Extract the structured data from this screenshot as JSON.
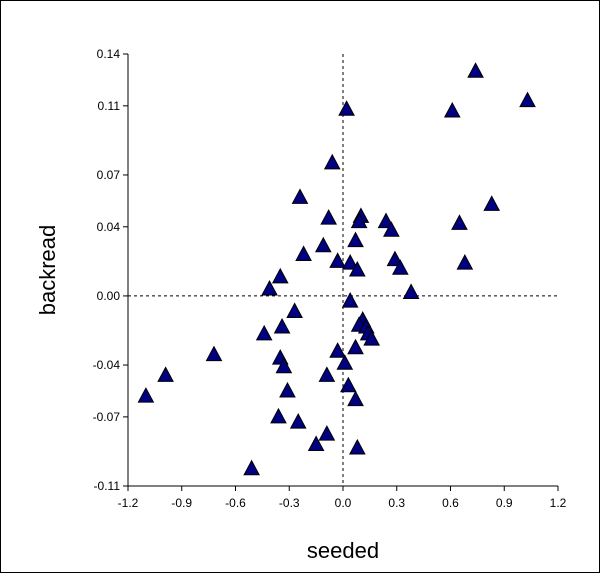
{
  "chart_data": {
    "type": "scatter",
    "title": "",
    "xlabel": "seeded",
    "ylabel": "backread",
    "xlim": [
      -1.2,
      1.2
    ],
    "ylim": [
      -0.11,
      0.14
    ],
    "x_ticks": [
      -1.2,
      -0.9,
      -0.6,
      -0.3,
      0.0,
      0.3,
      0.6,
      0.9,
      1.2
    ],
    "x_tick_labels": [
      "-1.2",
      "-0.9",
      "-0.6",
      "-0.3",
      "0.0",
      "0.3",
      "0.6",
      "0.9",
      "1.2"
    ],
    "y_ticks": [
      0.14,
      0.11,
      0.07,
      0.04,
      0.0,
      -0.04,
      -0.07,
      -0.11
    ],
    "y_tick_labels": [
      "0.14",
      "0.11",
      "0.07",
      "0.04",
      "0.00",
      "-0.04",
      "-0.07",
      "-0.11"
    ],
    "reference_lines": {
      "x": 0,
      "y": 0,
      "style": "dashed"
    },
    "marker": {
      "shape": "triangle",
      "fill": "#000080",
      "stroke": "#000000"
    },
    "grid": false,
    "legend": "none",
    "points": [
      {
        "x": 0.74,
        "y": 0.13
      },
      {
        "x": 1.03,
        "y": 0.113
      },
      {
        "x": 0.61,
        "y": 0.107
      },
      {
        "x": 0.02,
        "y": 0.108
      },
      {
        "x": -0.06,
        "y": 0.077
      },
      {
        "x": -0.24,
        "y": 0.057
      },
      {
        "x": 0.83,
        "y": 0.053
      },
      {
        "x": -0.08,
        "y": 0.045
      },
      {
        "x": 0.1,
        "y": 0.046
      },
      {
        "x": 0.09,
        "y": 0.043
      },
      {
        "x": 0.24,
        "y": 0.043
      },
      {
        "x": 0.27,
        "y": 0.038
      },
      {
        "x": 0.65,
        "y": 0.042
      },
      {
        "x": 0.07,
        "y": 0.032
      },
      {
        "x": -0.11,
        "y": 0.029
      },
      {
        "x": -0.22,
        "y": 0.024
      },
      {
        "x": -0.03,
        "y": 0.02
      },
      {
        "x": 0.04,
        "y": 0.019
      },
      {
        "x": 0.29,
        "y": 0.021
      },
      {
        "x": 0.68,
        "y": 0.019
      },
      {
        "x": 0.08,
        "y": 0.015
      },
      {
        "x": 0.32,
        "y": 0.016
      },
      {
        "x": -0.35,
        "y": 0.011
      },
      {
        "x": -0.41,
        "y": 0.004
      },
      {
        "x": 0.38,
        "y": 0.002
      },
      {
        "x": 0.04,
        "y": -0.003
      },
      {
        "x": -0.27,
        "y": -0.009
      },
      {
        "x": 0.11,
        "y": -0.014
      },
      {
        "x": 0.09,
        "y": -0.017
      },
      {
        "x": -0.34,
        "y": -0.018
      },
      {
        "x": 0.13,
        "y": -0.018
      },
      {
        "x": 0.14,
        "y": -0.022
      },
      {
        "x": -0.44,
        "y": -0.022
      },
      {
        "x": 0.16,
        "y": -0.025
      },
      {
        "x": 0.07,
        "y": -0.03
      },
      {
        "x": -0.03,
        "y": -0.032
      },
      {
        "x": -0.72,
        "y": -0.034
      },
      {
        "x": -0.35,
        "y": -0.036
      },
      {
        "x": 0.01,
        "y": -0.039
      },
      {
        "x": -0.33,
        "y": -0.041
      },
      {
        "x": -0.09,
        "y": -0.046
      },
      {
        "x": -0.99,
        "y": -0.046
      },
      {
        "x": 0.03,
        "y": -0.052
      },
      {
        "x": -0.31,
        "y": -0.055
      },
      {
        "x": -1.1,
        "y": -0.058
      },
      {
        "x": 0.07,
        "y": -0.06
      },
      {
        "x": -0.36,
        "y": -0.07
      },
      {
        "x": -0.25,
        "y": -0.073
      },
      {
        "x": -0.09,
        "y": -0.08
      },
      {
        "x": -0.15,
        "y": -0.086
      },
      {
        "x": 0.08,
        "y": -0.088
      },
      {
        "x": -0.51,
        "y": -0.1
      }
    ]
  }
}
